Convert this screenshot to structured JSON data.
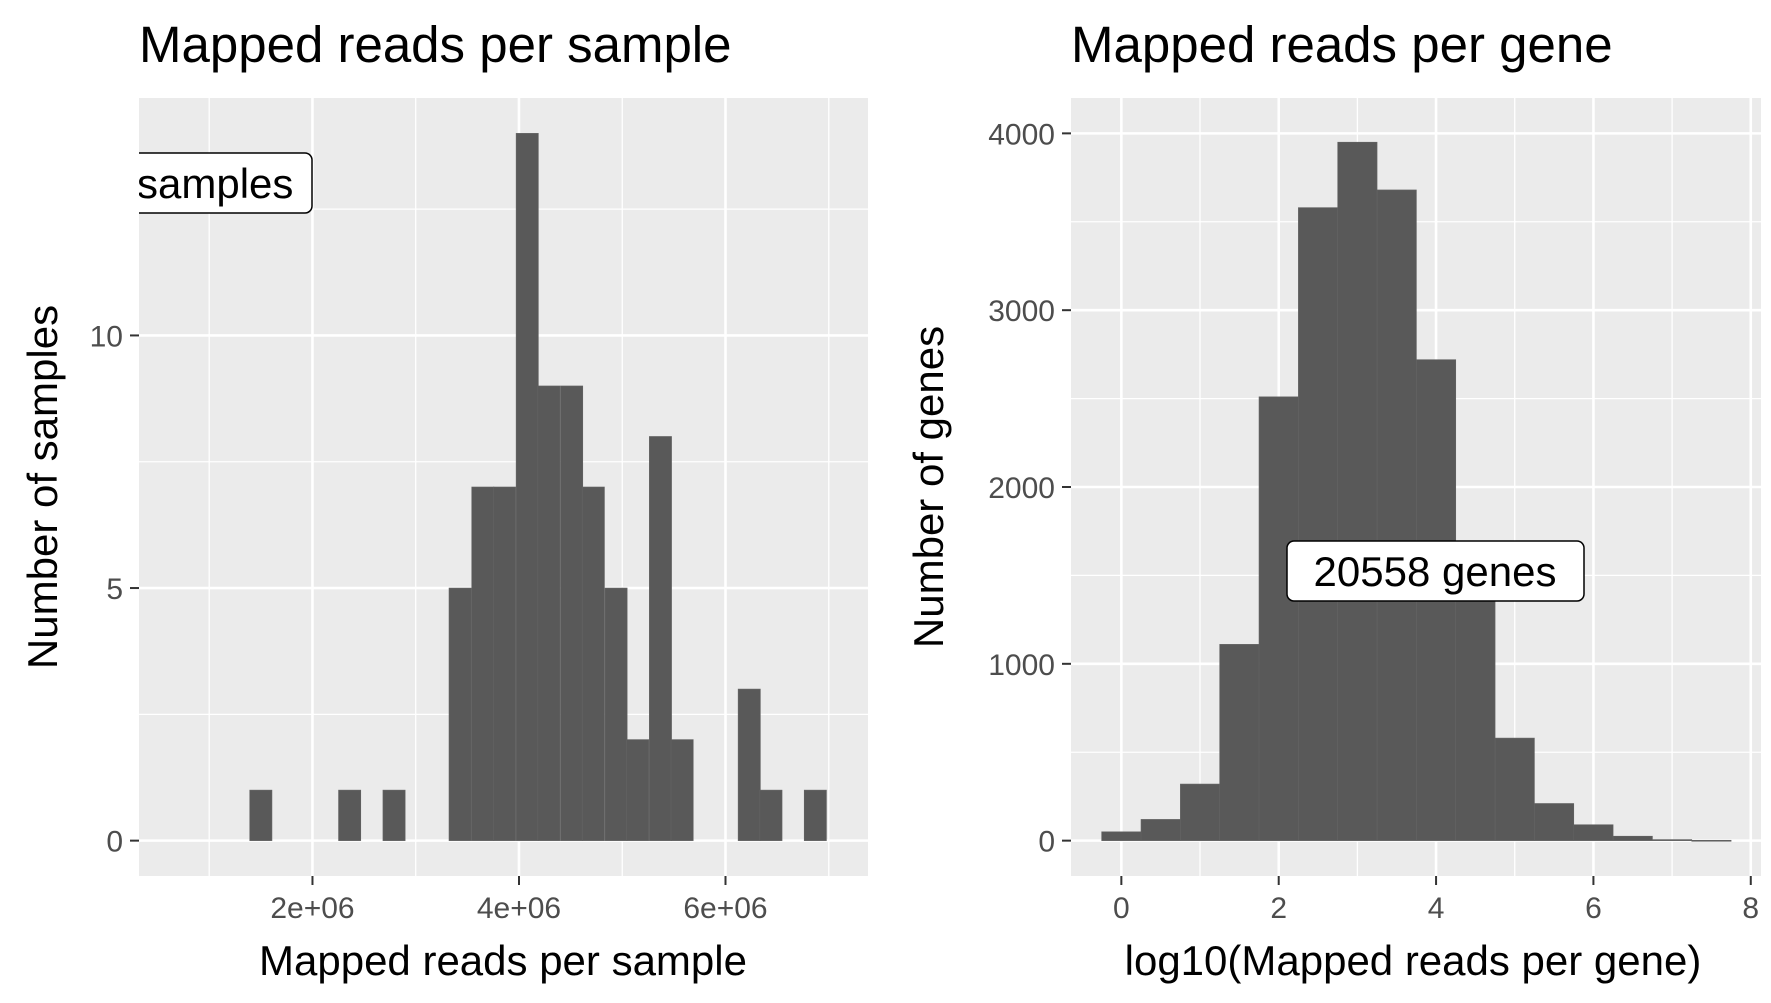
{
  "colors": {
    "panel_bg": "#ebebeb",
    "grid": "#ffffff",
    "bar": "#595959",
    "tick": "#4d4d4d"
  },
  "chart_data": [
    {
      "type": "bar",
      "title": "Mapped reads per sample",
      "xlabel": "Mapped reads per sample",
      "ylabel": "Number of samples",
      "xlim": [
        320000,
        7380000
      ],
      "ylim": [
        -0.7,
        14.7
      ],
      "x_ticks": [
        2000000,
        4000000,
        6000000
      ],
      "x_tick_labels": [
        "2e+06",
        "4e+06",
        "6e+06"
      ],
      "y_ticks": [
        0,
        5,
        10
      ],
      "y_tick_labels": [
        "0",
        "5",
        "10"
      ],
      "grid": true,
      "legend": "none",
      "annotation": "samples",
      "bin_width": 215000,
      "bins": [
        {
          "x": 1500000,
          "count": 1
        },
        {
          "x": 2360000,
          "count": 1
        },
        {
          "x": 2790000,
          "count": 1
        },
        {
          "x": 3430000,
          "count": 5
        },
        {
          "x": 3650000,
          "count": 7
        },
        {
          "x": 3860000,
          "count": 7
        },
        {
          "x": 4080000,
          "count": 14
        },
        {
          "x": 4290000,
          "count": 9
        },
        {
          "x": 4510000,
          "count": 9
        },
        {
          "x": 4720000,
          "count": 7
        },
        {
          "x": 4940000,
          "count": 5
        },
        {
          "x": 5150000,
          "count": 2
        },
        {
          "x": 5370000,
          "count": 8
        },
        {
          "x": 5580000,
          "count": 2
        },
        {
          "x": 6230000,
          "count": 3
        },
        {
          "x": 6440000,
          "count": 1
        },
        {
          "x": 6870000,
          "count": 1
        }
      ]
    },
    {
      "type": "bar",
      "title": "Mapped reads per gene",
      "xlabel": "log10(Mapped reads per gene)",
      "ylabel": "Number of genes",
      "xlim": [
        -0.64,
        8.13
      ],
      "ylim": [
        -200,
        4200
      ],
      "x_ticks": [
        0,
        2,
        4,
        6,
        8
      ],
      "x_tick_labels": [
        "0",
        "2",
        "4",
        "6",
        "8"
      ],
      "y_ticks": [
        0,
        1000,
        2000,
        3000,
        4000
      ],
      "y_tick_labels": [
        "0",
        "1000",
        "2000",
        "3000",
        "4000"
      ],
      "grid": true,
      "legend": "none",
      "annotation": "20558 genes",
      "bin_width": 0.5,
      "bins": [
        {
          "x": 0.0,
          "count": 50
        },
        {
          "x": 0.5,
          "count": 120
        },
        {
          "x": 1.0,
          "count": 320
        },
        {
          "x": 1.5,
          "count": 1110
        },
        {
          "x": 2.0,
          "count": 2510
        },
        {
          "x": 2.5,
          "count": 3580
        },
        {
          "x": 3.0,
          "count": 3950
        },
        {
          "x": 3.5,
          "count": 3680
        },
        {
          "x": 4.0,
          "count": 2720
        },
        {
          "x": 4.5,
          "count": 1380
        },
        {
          "x": 5.0,
          "count": 580
        },
        {
          "x": 5.5,
          "count": 210
        },
        {
          "x": 6.0,
          "count": 90
        },
        {
          "x": 6.5,
          "count": 25
        },
        {
          "x": 7.0,
          "count": 6
        },
        {
          "x": 7.5,
          "count": 2
        }
      ]
    }
  ]
}
